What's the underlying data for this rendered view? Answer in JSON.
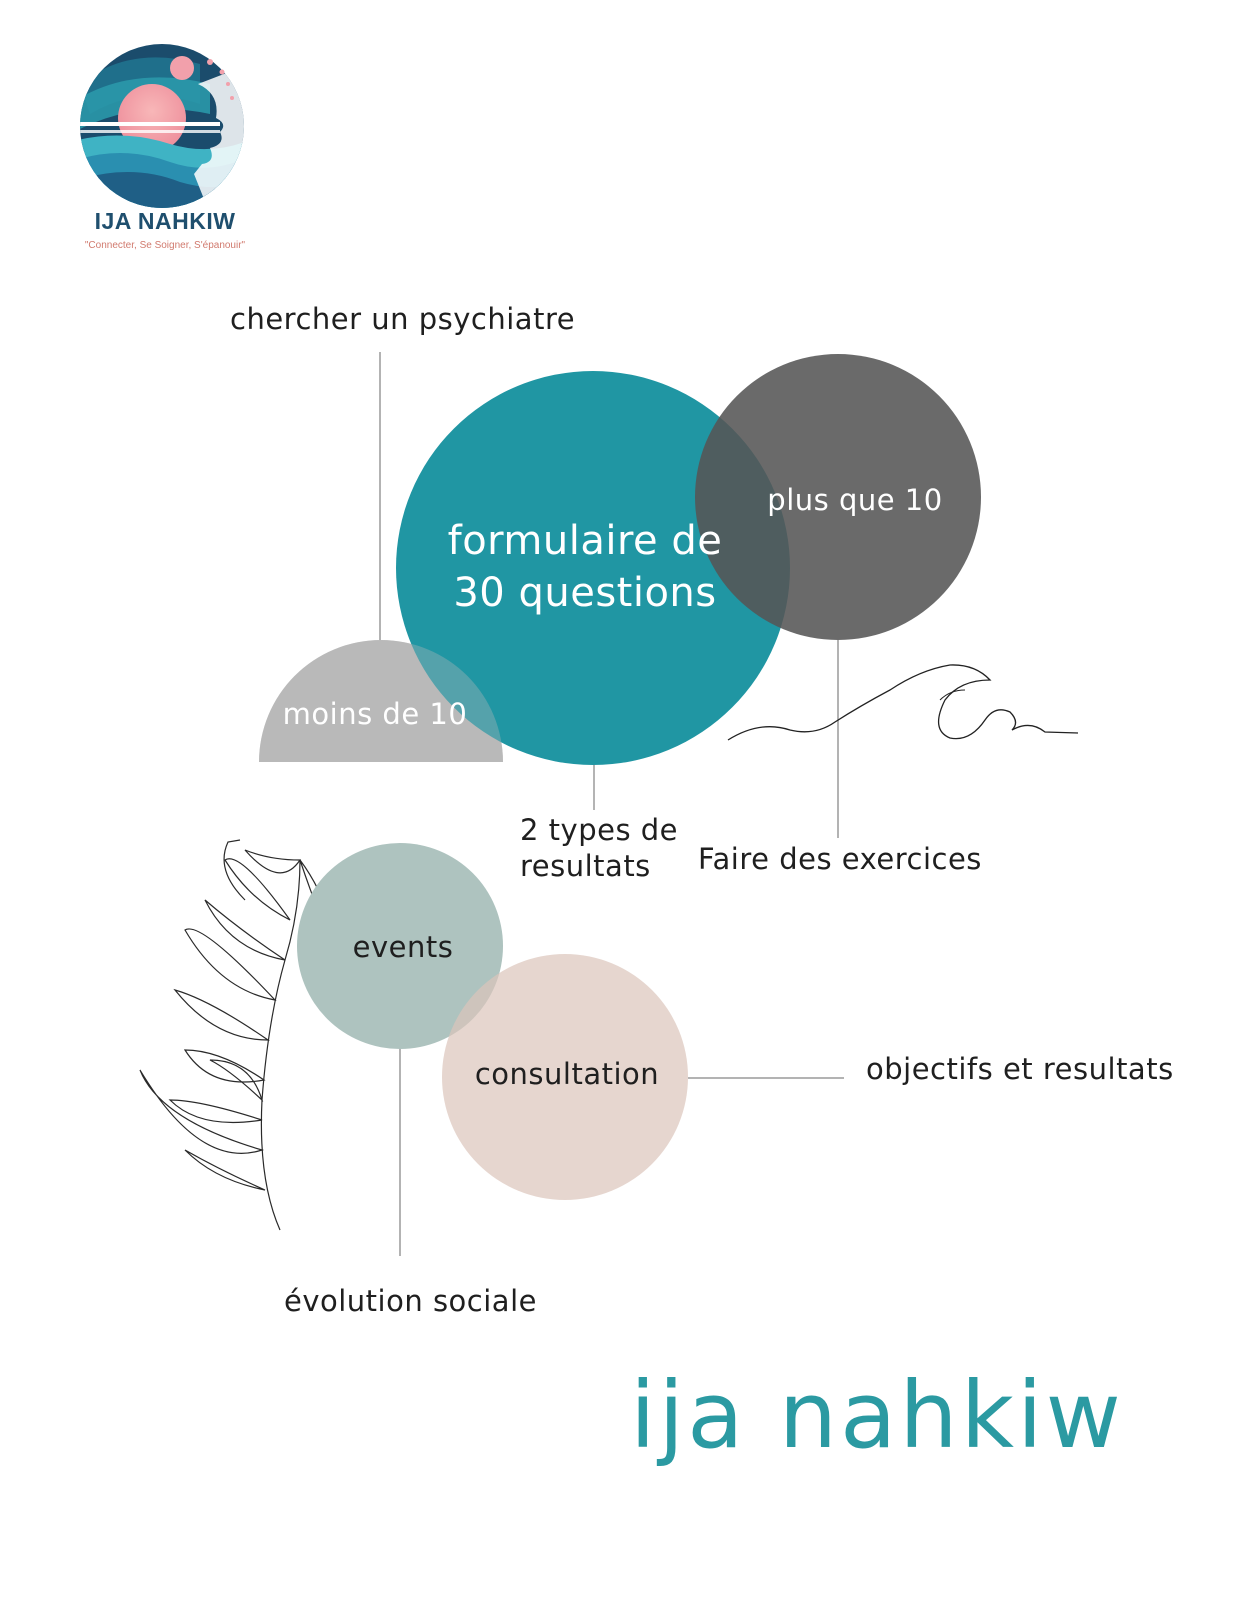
{
  "logo": {
    "name": "IJA NAHKIW",
    "tagline": "\"Connecter, Se Soigner, S'épanouir\""
  },
  "diagram": {
    "top_label": "chercher un psychiatre",
    "center_circle": "formulaire de\n30 questions",
    "right_circle": "plus que 10",
    "left_half_circle": "moins de 10",
    "bottom_label_center": "2 types de\nresultats",
    "bottom_label_right": "Faire des exercices",
    "events_circle": "events",
    "consultation_circle": "consultation",
    "right_label": "objectifs et resultats",
    "bottom_label_events": "évolution sociale"
  },
  "brand_text": "ija nahkiw",
  "colors": {
    "teal": "#2096a3",
    "dark_gray": "#5e5e5e",
    "light_gray": "#b9b9b9",
    "sage": "#aec3bf",
    "blush": "#e6d5cf",
    "logo_navy": "#1f4f6e",
    "logo_pink": "#f2a0ab"
  },
  "icons": [
    "logo-emblem-icon",
    "wave-line-icon",
    "leaf-branch-icon"
  ]
}
